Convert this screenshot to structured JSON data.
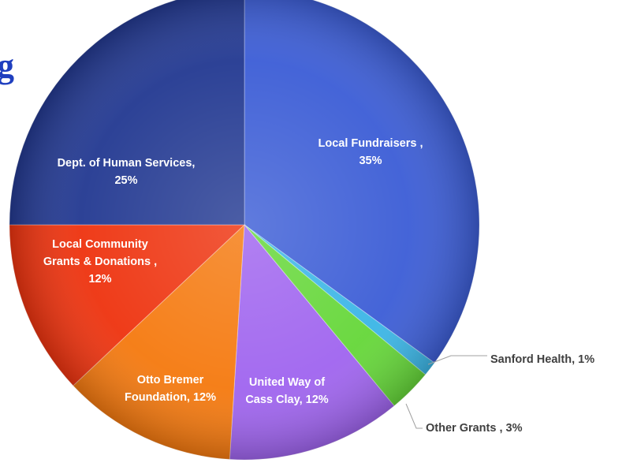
{
  "title_fragment": "g",
  "chart_data": {
    "type": "pie",
    "title": "",
    "legend": "none",
    "data_labels": true,
    "slices": [
      {
        "label": "Local Fundraisers",
        "label_lines": [
          "Local Fundraisers ,",
          "35%"
        ],
        "value": 35,
        "color": "#3d5ed6"
      },
      {
        "label": "Sanford Health",
        "label_lines": [
          "Sanford Health, 1%"
        ],
        "value": 1,
        "color": "#3cb6e6"
      },
      {
        "label": "Other Grants",
        "label_lines": [
          "Other Grants , 3%"
        ],
        "value": 3,
        "color": "#66d73a"
      },
      {
        "label": "United Way of Cass Clay",
        "label_lines": [
          "United Way of",
          "Cass Clay, 12%"
        ],
        "value": 12,
        "color": "#a065ef"
      },
      {
        "label": "Otto Bremer Foundation",
        "label_lines": [
          "Otto Bremer",
          "Foundation, 12%"
        ],
        "value": 12,
        "color": "#f57a10"
      },
      {
        "label": "Local Community Grants & Donations",
        "label_lines": [
          "Local Community",
          "Grants & Donations ,",
          "12%"
        ],
        "value": 12,
        "color": "#ee3410"
      },
      {
        "label": "Dept. of Human Services",
        "label_lines": [
          "Dept. of Human Services,",
          "25%"
        ],
        "value": 25,
        "color": "#243a92"
      }
    ]
  }
}
